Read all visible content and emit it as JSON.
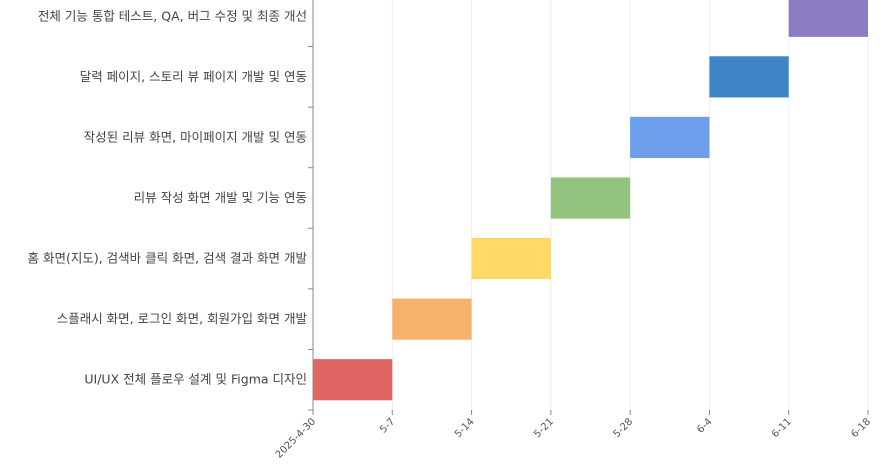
{
  "chart_data": {
    "type": "gantt",
    "x_ticks": [
      "2025-4-30",
      "5-7",
      "5-14",
      "5-21",
      "5-28",
      "6-4",
      "6-11",
      "6-18"
    ],
    "xlim": [
      "2025-04-30",
      "2025-06-18"
    ],
    "grid": true,
    "tasks": [
      {
        "label": "UI/UX 전체 플로우 설계 및 Figma 디자인",
        "start": "2025-04-30",
        "end": "2025-05-07",
        "color": "#e06666"
      },
      {
        "label": "스플래시 화면, 로그인 화면, 회원가입 화면 개발",
        "start": "2025-05-07",
        "end": "2025-05-14",
        "color": "#f6b26b"
      },
      {
        "label": "홈 화면(지도), 검색바 클릭 화면, 검색 결과 화면 개발",
        "start": "2025-05-14",
        "end": "2025-05-21",
        "color": "#ffd966"
      },
      {
        "label": "리뷰 작성 화면 개발 및 기능 연동",
        "start": "2025-05-21",
        "end": "2025-05-28",
        "color": "#93c47d"
      },
      {
        "label": "작성된 리뷰 화면, 마이페이지 개발 및 연동",
        "start": "2025-05-28",
        "end": "2025-06-04",
        "color": "#6d9eeb"
      },
      {
        "label": "달력 페이지, 스토리 뷰 페이지 개발 및 연동",
        "start": "2025-06-04",
        "end": "2025-06-11",
        "color": "#3d85c6"
      },
      {
        "label": "전체 기능 통합 테스트, QA, 버그 수정 및 최종 개선",
        "start": "2025-06-11",
        "end": "2025-06-18",
        "color": "#8e7cc3"
      }
    ]
  }
}
